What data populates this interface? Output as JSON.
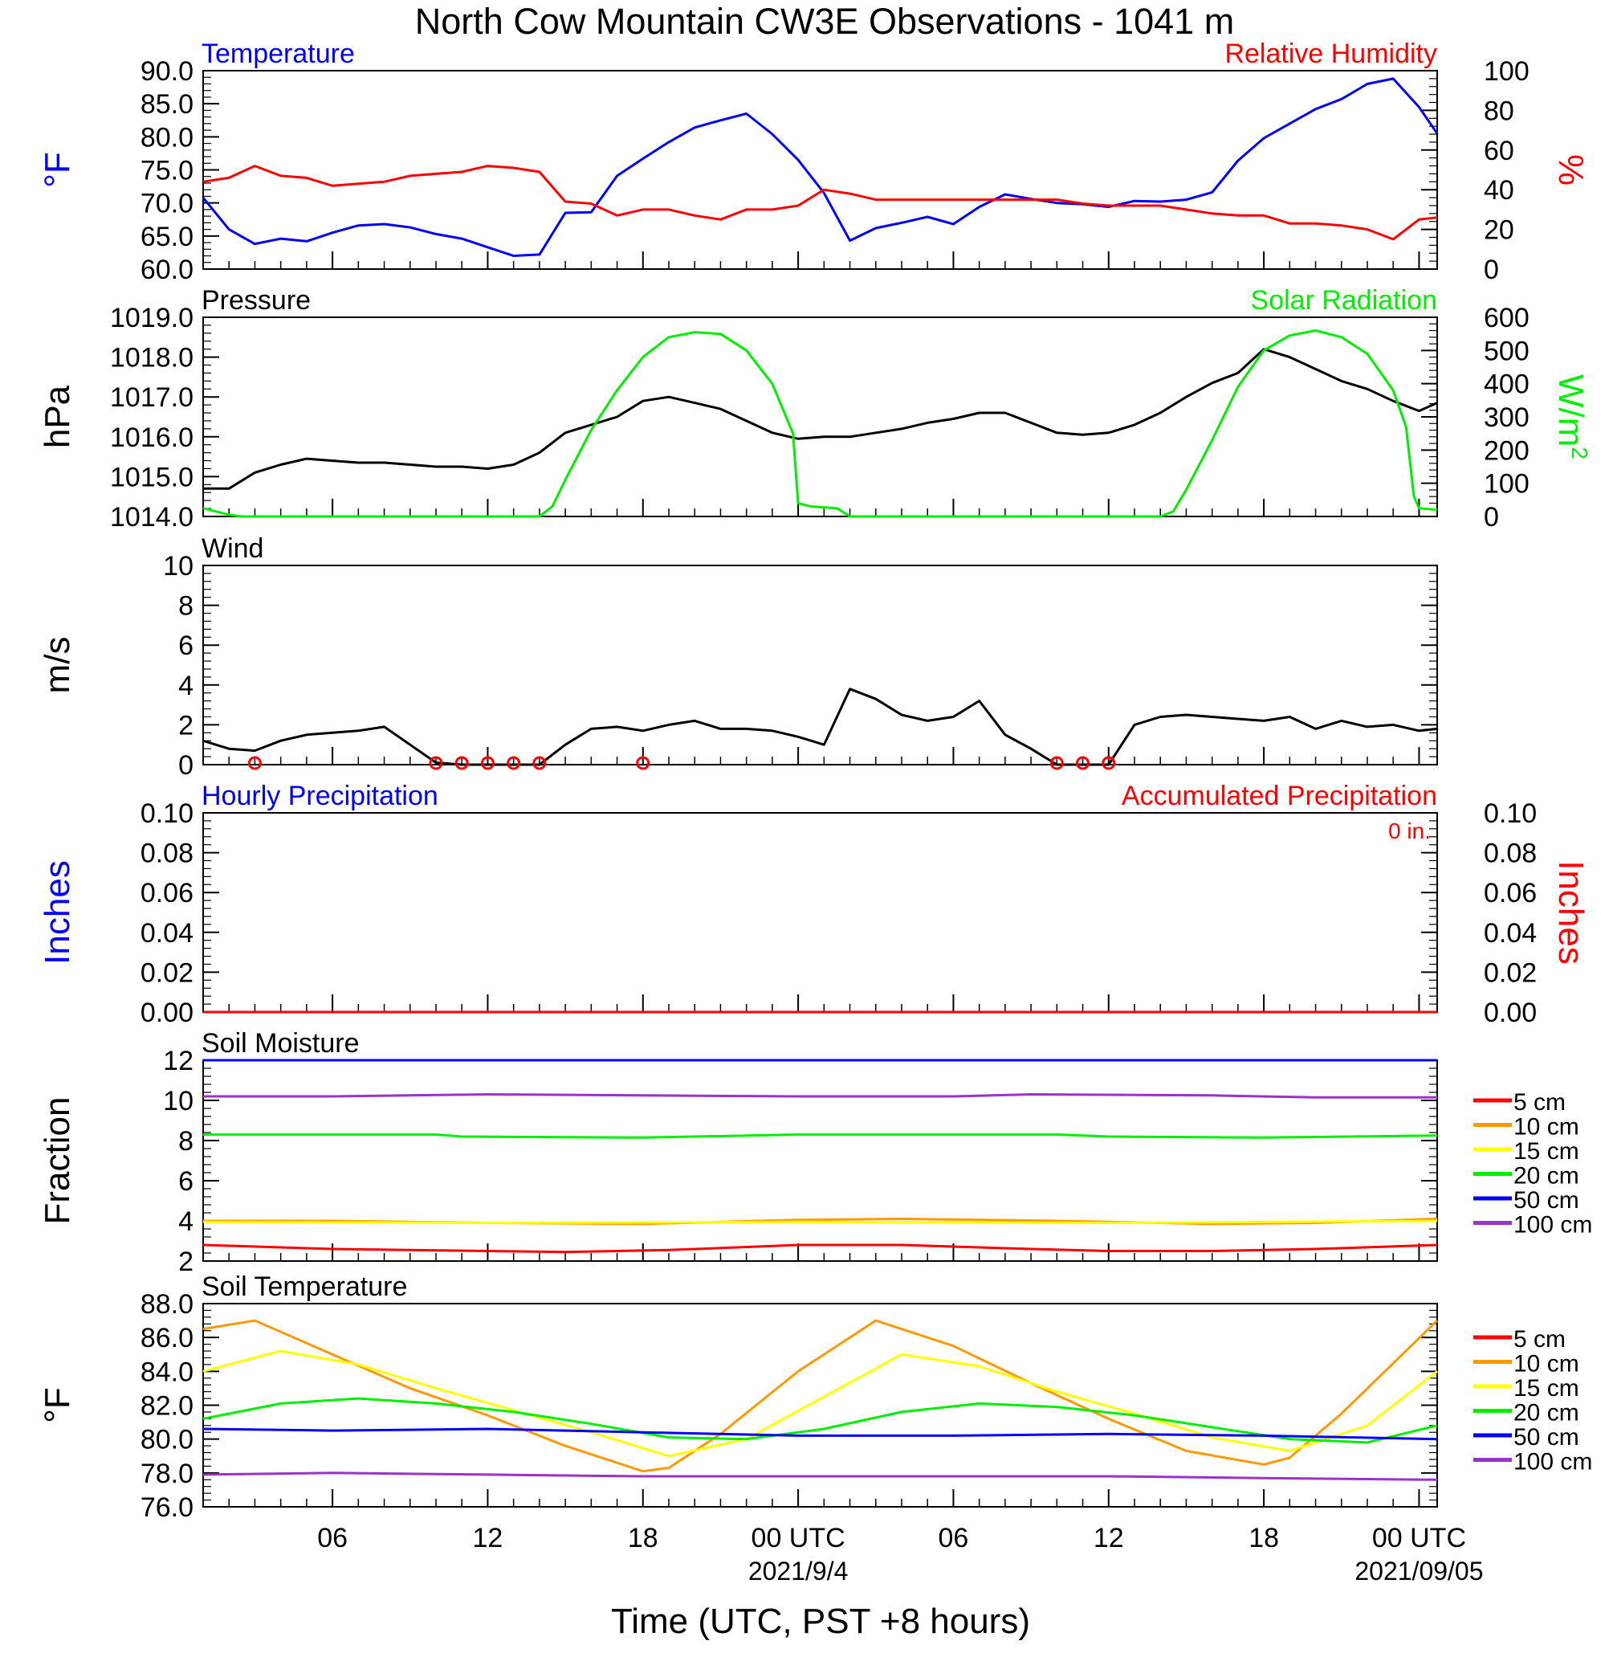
{
  "title": "North Cow Mountain CW3E Observations - 1041 m",
  "colors": {
    "red": "#ff0000",
    "orange": "#ff9900",
    "yellow": "#ffff00",
    "green": "#00ee00",
    "blue": "#0000ff",
    "purple": "#9933cc",
    "black": "#000000"
  },
  "x_axis": {
    "label": "Time (UTC, PST +8 hours)",
    "ticks": [
      "06",
      "12",
      "18",
      "00 UTC",
      "06",
      "12",
      "18",
      "00 UTC"
    ],
    "tick_hours": [
      6,
      12,
      18,
      24,
      30,
      36,
      42,
      48
    ],
    "dates": [
      "2021/9/4",
      "2021/09/05"
    ],
    "date_hours": [
      24,
      48
    ],
    "range_hours": [
      1,
      48.7
    ]
  },
  "chart_data": [
    {
      "type": "line",
      "title_left": "Temperature",
      "title_right": "Relative Humidity",
      "ylabel_left": "°F",
      "ylabel_right": "%",
      "yticks_left": [
        "60.0",
        "65.0",
        "70.0",
        "75.0",
        "80.0",
        "85.0",
        "90.0"
      ],
      "yticks_right": [
        "0",
        "20",
        "40",
        "60",
        "80",
        "100"
      ],
      "ylim_left": [
        60,
        90
      ],
      "ylim_right": [
        0,
        100
      ],
      "series": [
        {
          "name": "Temperature",
          "color": "#0000ff",
          "axis": "left",
          "x": [
            1,
            2,
            3,
            4,
            5,
            6,
            7,
            8,
            9,
            10,
            11,
            12,
            13,
            14,
            15,
            16,
            17,
            18,
            19,
            20,
            21,
            22,
            23,
            24,
            25,
            26,
            27,
            28,
            29,
            30,
            31,
            32,
            33,
            34,
            35,
            36,
            37,
            38,
            39,
            40,
            41,
            42,
            43,
            44,
            45,
            46,
            47,
            48,
            48.7
          ],
          "y": [
            70.8,
            66.0,
            63.8,
            64.6,
            64.2,
            65.5,
            66.6,
            66.8,
            66.3,
            65.3,
            64.6,
            63.3,
            62.0,
            62.2,
            68.5,
            68.6,
            74.1,
            76.7,
            79.2,
            81.4,
            82.5,
            83.5,
            80.4,
            76.5,
            71.5,
            64.3,
            66.2,
            67.0,
            67.9,
            66.8,
            69.4,
            71.3,
            70.6,
            70.0,
            69.8,
            69.4,
            70.3,
            70.2,
            70.5,
            71.6,
            76.4,
            79.8,
            82.0,
            84.2,
            85.7,
            88.0,
            88.8,
            84.5,
            80.5
          ]
        },
        {
          "name": "Relative Humidity",
          "color": "#ff0000",
          "axis": "right",
          "x": [
            1,
            2,
            3,
            4,
            5,
            6,
            7,
            8,
            9,
            10,
            11,
            12,
            13,
            14,
            15,
            16,
            17,
            18,
            19,
            20,
            21,
            22,
            23,
            24,
            25,
            26,
            27,
            28,
            29,
            30,
            31,
            32,
            33,
            34,
            35,
            36,
            37,
            38,
            39,
            40,
            41,
            42,
            43,
            44,
            45,
            46,
            47,
            48,
            48.7
          ],
          "y": [
            44,
            46,
            52,
            47,
            46,
            42,
            43,
            44,
            47,
            48,
            49,
            52,
            51,
            49,
            34,
            33,
            27,
            30,
            30,
            27,
            25,
            30,
            30,
            32,
            40,
            38,
            35,
            35,
            35,
            35,
            35,
            35,
            35,
            35,
            33,
            32,
            32,
            32,
            30,
            28,
            27,
            27,
            23,
            23,
            22,
            20,
            15,
            25,
            26
          ]
        }
      ]
    },
    {
      "type": "line",
      "title_left": "Pressure",
      "title_right": "Solar Radiation",
      "ylabel_left": "hPa",
      "ylabel_right": "W/m",
      "ylabel_right_sup": "2",
      "yticks_left": [
        "1014.0",
        "1015.0",
        "1016.0",
        "1017.0",
        "1018.0",
        "1019.0"
      ],
      "yticks_right": [
        "0",
        "100",
        "200",
        "300",
        "400",
        "500",
        "600"
      ],
      "ylim_left": [
        1014,
        1019
      ],
      "ylim_right": [
        0,
        600
      ],
      "series": [
        {
          "name": "Pressure",
          "color": "#000000",
          "axis": "left",
          "x": [
            1,
            2,
            3,
            4,
            5,
            6,
            7,
            8,
            9,
            10,
            11,
            12,
            13,
            14,
            15,
            16,
            17,
            18,
            19,
            20,
            21,
            22,
            23,
            24,
            25,
            26,
            27,
            28,
            29,
            30,
            31,
            32,
            33,
            34,
            35,
            36,
            37,
            38,
            39,
            40,
            41,
            42,
            43,
            44,
            45,
            46,
            47,
            48,
            48.7
          ],
          "y": [
            1014.7,
            1014.7,
            1015.1,
            1015.3,
            1015.45,
            1015.4,
            1015.35,
            1015.35,
            1015.3,
            1015.25,
            1015.25,
            1015.2,
            1015.3,
            1015.6,
            1016.1,
            1016.3,
            1016.5,
            1016.9,
            1017.0,
            1016.85,
            1016.7,
            1016.4,
            1016.1,
            1015.95,
            1016.0,
            1016.0,
            1016.1,
            1016.2,
            1016.35,
            1016.45,
            1016.6,
            1016.6,
            1016.35,
            1016.1,
            1016.05,
            1016.1,
            1016.3,
            1016.6,
            1017.0,
            1017.35,
            1017.6,
            1018.2,
            1018.0,
            1017.7,
            1017.4,
            1017.2,
            1016.9,
            1016.65,
            1016.85
          ]
        },
        {
          "name": "Solar Radiation",
          "color": "#00ee00",
          "axis": "right",
          "x": [
            1,
            2,
            2.5,
            13,
            14,
            14.5,
            15,
            16,
            17,
            18,
            19,
            20,
            21,
            22,
            23,
            23.8,
            24,
            24.5,
            25.5,
            26,
            38,
            38.5,
            39,
            40,
            41,
            42,
            43,
            44,
            45,
            46,
            47,
            47.5,
            47.8,
            48,
            48.7
          ],
          "y": [
            25,
            5,
            0,
            0,
            0,
            30,
            110,
            260,
            380,
            480,
            540,
            555,
            550,
            500,
            400,
            250,
            40,
            30,
            25,
            0,
            0,
            15,
            80,
            230,
            390,
            500,
            545,
            560,
            540,
            490,
            380,
            270,
            60,
            25,
            20
          ]
        }
      ]
    },
    {
      "type": "line",
      "title_left": "Wind",
      "ylabel_left": "m/s",
      "yticks_left": [
        "0",
        "2",
        "4",
        "6",
        "8",
        "10"
      ],
      "ylim_left": [
        0,
        10
      ],
      "series": [
        {
          "name": "Wind",
          "color": "#000000",
          "axis": "left",
          "x": [
            1,
            2,
            3,
            4,
            5,
            6,
            7,
            8,
            9,
            10,
            11,
            12,
            13,
            14,
            15,
            16,
            17,
            18,
            19,
            20,
            21,
            22,
            23,
            24,
            25,
            26,
            27,
            28,
            29,
            30,
            31,
            32,
            33,
            34,
            35,
            36,
            37,
            38,
            39,
            40,
            41,
            42,
            43,
            44,
            45,
            46,
            47,
            48,
            48.7
          ],
          "y": [
            1.2,
            0.8,
            0.7,
            1.2,
            1.5,
            1.6,
            1.7,
            1.9,
            1.0,
            0.1,
            0.0,
            0.0,
            0.0,
            0.0,
            1.0,
            1.8,
            1.9,
            1.7,
            2.0,
            2.2,
            1.8,
            1.8,
            1.7,
            1.4,
            1.0,
            3.8,
            3.3,
            2.5,
            2.2,
            2.4,
            3.2,
            1.5,
            0.8,
            0.0,
            0.0,
            0.0,
            2.0,
            2.4,
            2.5,
            2.4,
            2.3,
            2.2,
            2.4,
            1.8,
            2.2,
            1.9,
            2.0,
            1.7,
            1.8
          ]
        },
        {
          "name": "Calm",
          "color": "#ff0000",
          "axis": "left",
          "marker": "circle",
          "x": [
            3,
            10,
            11,
            12,
            13,
            14,
            18,
            34,
            35,
            36
          ],
          "y": [
            0,
            0,
            0,
            0,
            0,
            0,
            0,
            0,
            0,
            0
          ]
        }
      ]
    },
    {
      "type": "line",
      "title_left": "Hourly Precipitation",
      "title_right": "Accumulated Precipitation",
      "annotation": "0 in.",
      "ylabel_left": "Inches",
      "ylabel_right": "Inches",
      "yticks_left": [
        "0.00",
        "0.02",
        "0.04",
        "0.06",
        "0.08",
        "0.10"
      ],
      "yticks_right": [
        "0.00",
        "0.02",
        "0.04",
        "0.06",
        "0.08",
        "0.10"
      ],
      "ylim_left": [
        0,
        0.1
      ],
      "ylim_right": [
        0,
        0.1
      ],
      "series": [
        {
          "name": "Hourly Precipitation",
          "color": "#0000ff",
          "axis": "left",
          "x": [
            1,
            48.7
          ],
          "y": [
            0,
            0
          ]
        },
        {
          "name": "Accumulated Precipitation",
          "color": "#ff0000",
          "axis": "right",
          "x": [
            1,
            48.7
          ],
          "y": [
            0,
            0
          ]
        }
      ]
    },
    {
      "type": "line",
      "title_left": "Soil Moisture",
      "ylabel_left": "Fraction",
      "yticks_left": [
        "2",
        "4",
        "6",
        "8",
        "10",
        "12"
      ],
      "ylim_left": [
        2,
        12
      ],
      "series": [
        {
          "name": "5 cm",
          "color": "#ff0000",
          "axis": "left",
          "x": [
            1,
            6,
            12,
            15,
            19,
            24,
            28,
            33,
            36,
            40,
            44,
            48.7
          ],
          "y": [
            2.8,
            2.6,
            2.5,
            2.45,
            2.55,
            2.8,
            2.8,
            2.6,
            2.5,
            2.5,
            2.6,
            2.8
          ]
        },
        {
          "name": "10 cm",
          "color": "#ff9900",
          "axis": "left",
          "x": [
            1,
            6,
            12,
            18,
            24,
            28,
            34,
            40,
            44,
            48.7
          ],
          "y": [
            4.0,
            4.0,
            3.9,
            3.85,
            4.05,
            4.1,
            4.0,
            3.85,
            3.9,
            4.1
          ]
        },
        {
          "name": "15 cm",
          "color": "#ffff00",
          "axis": "left",
          "x": [
            1,
            12,
            24,
            36,
            48.7
          ],
          "y": [
            3.95,
            3.9,
            3.95,
            3.9,
            4.0
          ]
        },
        {
          "name": "20 cm",
          "color": "#00ee00",
          "axis": "left",
          "x": [
            1,
            10,
            11,
            18,
            24,
            34,
            36,
            42,
            48.7
          ],
          "y": [
            8.3,
            8.3,
            8.2,
            8.15,
            8.3,
            8.3,
            8.2,
            8.15,
            8.25
          ]
        },
        {
          "name": "50 cm",
          "color": "#0000ff",
          "axis": "left",
          "x": [
            1,
            48.7
          ],
          "y": [
            12.0,
            12.0
          ]
        },
        {
          "name": "100 cm",
          "color": "#9933cc",
          "axis": "left",
          "x": [
            1,
            6,
            12,
            18,
            24,
            30,
            33,
            40,
            44,
            48.7
          ],
          "y": [
            10.2,
            10.2,
            10.3,
            10.25,
            10.2,
            10.2,
            10.3,
            10.25,
            10.15,
            10.15
          ]
        }
      ],
      "legend": [
        "5 cm",
        "10 cm",
        "15 cm",
        "20 cm",
        "50 cm",
        "100 cm"
      ]
    },
    {
      "type": "line",
      "title_left": "Soil Temperature",
      "ylabel_left": "°F",
      "yticks_left": [
        "76.0",
        "78.0",
        "80.0",
        "82.0",
        "84.0",
        "86.0",
        "88.0"
      ],
      "ylim_left": [
        76,
        88
      ],
      "series": [
        {
          "name": "5 cm",
          "color": "#ff0000",
          "axis": "left",
          "x": [],
          "y": []
        },
        {
          "name": "10 cm",
          "color": "#ff9900",
          "axis": "left",
          "x": [
            1,
            3,
            6,
            9,
            12,
            15,
            18,
            19,
            21,
            24,
            27,
            30,
            33,
            36,
            39,
            42,
            43,
            45,
            48.7
          ],
          "y": [
            86.5,
            87.0,
            85.0,
            83.0,
            81.4,
            79.6,
            78.1,
            78.3,
            80.3,
            84.0,
            87.0,
            85.5,
            83.3,
            81.2,
            79.3,
            78.5,
            78.9,
            81.5,
            87.0
          ]
        },
        {
          "name": "15 cm",
          "color": "#ffff00",
          "axis": "left",
          "x": [
            1,
            4,
            7,
            10,
            13,
            16,
            19,
            22,
            25,
            28,
            31,
            34,
            37,
            40,
            43,
            46,
            48.7
          ],
          "y": [
            84.0,
            85.2,
            84.4,
            83.0,
            81.7,
            80.4,
            79.0,
            80.0,
            82.5,
            85.0,
            84.3,
            82.8,
            81.5,
            80.1,
            79.3,
            80.8,
            84.0
          ]
        },
        {
          "name": "20 cm",
          "color": "#00ee00",
          "axis": "left",
          "x": [
            1,
            4,
            7,
            10,
            13,
            16,
            19,
            22,
            25,
            28,
            31,
            34,
            37,
            40,
            43,
            46,
            48.7
          ],
          "y": [
            81.2,
            82.1,
            82.4,
            82.1,
            81.6,
            80.9,
            80.1,
            80.0,
            80.6,
            81.6,
            82.1,
            81.9,
            81.4,
            80.7,
            80.0,
            79.8,
            80.8
          ]
        },
        {
          "name": "50 cm",
          "color": "#0000ff",
          "axis": "left",
          "x": [
            1,
            6,
            12,
            18,
            24,
            30,
            36,
            42,
            48.7
          ],
          "y": [
            80.6,
            80.5,
            80.6,
            80.4,
            80.2,
            80.2,
            80.3,
            80.2,
            80.0
          ]
        },
        {
          "name": "100 cm",
          "color": "#9933cc",
          "axis": "left",
          "x": [
            1,
            6,
            12,
            18,
            24,
            30,
            36,
            42,
            48.7
          ],
          "y": [
            77.9,
            78.0,
            77.9,
            77.8,
            77.8,
            77.8,
            77.8,
            77.7,
            77.6
          ]
        }
      ],
      "legend": [
        "5 cm",
        "10 cm",
        "15 cm",
        "20 cm",
        "50 cm",
        "100 cm"
      ]
    }
  ]
}
